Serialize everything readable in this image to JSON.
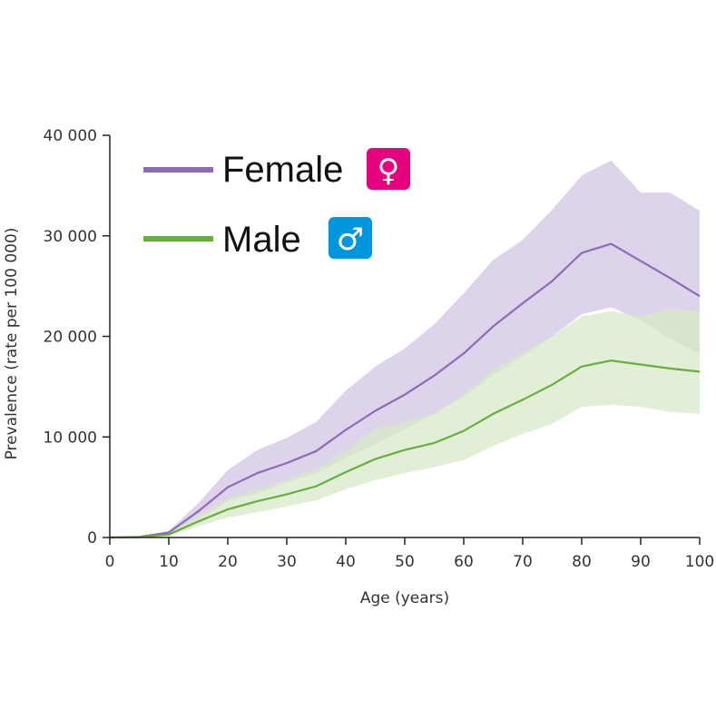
{
  "chart_data": {
    "type": "area",
    "xlabel": "Age (years)",
    "ylabel": "Prevalence (rate per 100 000)",
    "xlim": [
      0,
      100
    ],
    "ylim": [
      0,
      40000
    ],
    "x_ticks": [
      0,
      10,
      20,
      30,
      40,
      50,
      60,
      70,
      80,
      90,
      100
    ],
    "y_ticks": [
      0,
      10000,
      20000,
      30000,
      40000
    ],
    "x_tick_labels": [
      "0",
      "10",
      "20",
      "30",
      "40",
      "50",
      "60",
      "70",
      "80",
      "90",
      "100"
    ],
    "y_tick_labels": [
      "0",
      "10 000",
      "20 000",
      "30 000",
      "40 000"
    ],
    "grid": false,
    "legend_position": "top-left",
    "x": [
      0,
      5,
      10,
      15,
      20,
      25,
      30,
      35,
      40,
      45,
      50,
      55,
      60,
      65,
      70,
      75,
      80,
      85,
      90,
      95,
      100
    ],
    "series": [
      {
        "name": "Female",
        "symbol": "♀",
        "color": "#8e6bb5",
        "band_color": "#ddd3ea",
        "values": [
          0,
          50,
          500,
          2600,
          5000,
          6400,
          7400,
          8600,
          10700,
          12600,
          14200,
          16100,
          18300,
          21000,
          23300,
          25500,
          28300,
          29200,
          27500,
          25800,
          24000
        ],
        "upper": [
          0,
          80,
          650,
          3400,
          6700,
          8700,
          9900,
          11500,
          14600,
          17000,
          18800,
          21200,
          24300,
          27600,
          29600,
          32600,
          36000,
          37500,
          34300,
          34300,
          32500
        ],
        "lower": [
          0,
          20,
          300,
          1800,
          3600,
          4400,
          5500,
          6400,
          7900,
          9300,
          10800,
          12300,
          14000,
          16200,
          18000,
          20000,
          22200,
          22900,
          21600,
          19800,
          18200
        ]
      },
      {
        "name": "Male",
        "symbol": "♂",
        "color": "#6aad3f",
        "band_color": "#d6e9c7",
        "values": [
          0,
          30,
          300,
          1600,
          2800,
          3600,
          4300,
          5100,
          6500,
          7800,
          8700,
          9400,
          10600,
          12300,
          13700,
          15200,
          17000,
          17600,
          17200,
          16800,
          16500
        ],
        "upper": [
          0,
          50,
          450,
          2200,
          3900,
          4800,
          5800,
          6800,
          8700,
          10800,
          11500,
          12400,
          14200,
          16700,
          18400,
          20000,
          22000,
          22500,
          22000,
          22800,
          22500
        ],
        "lower": [
          0,
          15,
          150,
          1100,
          2000,
          2500,
          3100,
          3700,
          4800,
          5700,
          6400,
          7000,
          7700,
          9100,
          10300,
          11300,
          13000,
          13200,
          13000,
          12500,
          12300
        ]
      }
    ]
  },
  "colors": {
    "female_symbol_bg": "#e6007e",
    "male_symbol_bg": "#0096db",
    "axis": "#222222"
  }
}
